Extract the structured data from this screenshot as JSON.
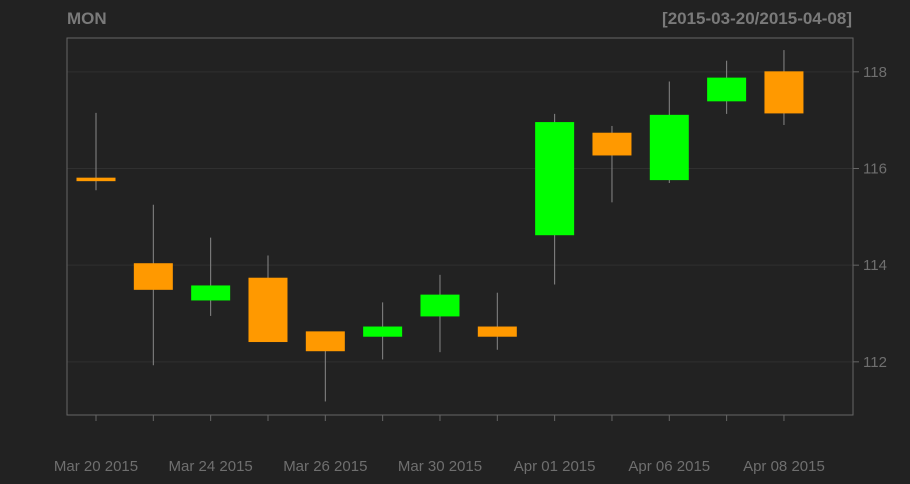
{
  "chart_data": {
    "type": "candlestick",
    "title": "MON",
    "subtitle": "[2015-03-20/2015-04-08]",
    "x_tick_labels": [
      "Mar 20 2015",
      "Mar 24 2015",
      "Mar 26 2015",
      "Mar 30 2015",
      "Apr 01 2015",
      "Apr 06 2015",
      "Apr 08 2015"
    ],
    "y_tick_labels": [
      "112",
      "114",
      "116",
      "118"
    ],
    "ylim": [
      110.9,
      118.7
    ],
    "grid": true,
    "colors": {
      "up": "#00ff00",
      "down": "#ff9900",
      "background": "#222222",
      "grid": "#303030",
      "axis": "#666666",
      "text": "#6f6f6f"
    },
    "candles": [
      {
        "date": "2015-03-20",
        "open": 115.8,
        "high": 117.15,
        "low": 115.55,
        "close": 115.77
      },
      {
        "date": "2015-03-23",
        "open": 114.03,
        "high": 115.25,
        "low": 111.93,
        "close": 113.5
      },
      {
        "date": "2015-03-24",
        "open": 113.28,
        "high": 114.57,
        "low": 112.95,
        "close": 113.57
      },
      {
        "date": "2015-03-25",
        "open": 113.73,
        "high": 114.2,
        "low": 112.42,
        "close": 112.42
      },
      {
        "date": "2015-03-26",
        "open": 112.62,
        "high": 112.62,
        "low": 111.18,
        "close": 112.23
      },
      {
        "date": "2015-03-27",
        "open": 112.53,
        "high": 113.23,
        "low": 112.05,
        "close": 112.72
      },
      {
        "date": "2015-03-30",
        "open": 112.95,
        "high": 113.8,
        "low": 112.2,
        "close": 113.38
      },
      {
        "date": "2015-03-31",
        "open": 112.72,
        "high": 113.43,
        "low": 112.25,
        "close": 112.53
      },
      {
        "date": "2015-04-01",
        "open": 114.63,
        "high": 117.13,
        "low": 113.6,
        "close": 116.95
      },
      {
        "date": "2015-04-02",
        "open": 116.73,
        "high": 116.88,
        "low": 115.3,
        "close": 116.28
      },
      {
        "date": "2015-04-06",
        "open": 115.77,
        "high": 117.8,
        "low": 115.7,
        "close": 117.1
      },
      {
        "date": "2015-04-07",
        "open": 117.4,
        "high": 118.23,
        "low": 117.13,
        "close": 117.87
      },
      {
        "date": "2015-04-08",
        "open": 118.0,
        "high": 118.45,
        "low": 116.9,
        "close": 117.15
      }
    ]
  }
}
